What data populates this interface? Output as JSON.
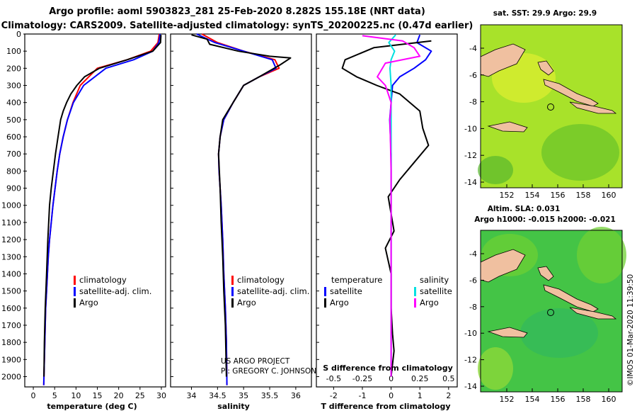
{
  "titles": {
    "line1": "Argo profile: aoml 5903823_281 25-Feb-2020 8.282S 155.18E (NRT data)",
    "line2": "Climatology: CARS2009. Satellite-adjusted climatology: synTS_20200225.nc (0.47d earlier)"
  },
  "colors": {
    "climatology": "#ff0000",
    "satellite": "#0000ff",
    "argo": "#000000",
    "sal_satellite": "#00e0e0",
    "sal_argo": "#ff00ff",
    "land": "#f0c0a0"
  },
  "depth_ticks": [
    0,
    100,
    200,
    300,
    400,
    500,
    600,
    700,
    800,
    900,
    1000,
    1100,
    1200,
    1300,
    1400,
    1500,
    1600,
    1700,
    1800,
    1900,
    2000
  ],
  "legend": {
    "climatology": "climatology",
    "satellite_adj": "satellite-adj. clim.",
    "argo": "Argo",
    "temperature": "temperature",
    "salinity": "salinity",
    "satellite": "satellite"
  },
  "credits": {
    "project": "US ARGO PROJECT",
    "pi": "PI: GREGORY C. JOHNSON"
  },
  "maps": {
    "sst_title": "sat. SST: 29.9 Argo: 29.9",
    "sla_title1": "Altim. SLA: 0.031",
    "sla_title2": "Argo h1000: -0.015 h2000: -0.021",
    "lat_ticks": [
      "-4",
      "-6",
      "-8",
      "-10",
      "-12",
      "-14"
    ],
    "lon_ticks": [
      "152",
      "154",
      "156",
      "158",
      "160"
    ],
    "watermark": "©IMOS 01-Mar-2020 11:39:50"
  },
  "chart_data": [
    {
      "type": "line",
      "title": "",
      "xlabel": "temperature (deg C)",
      "ylabel": "depth",
      "xlim": [
        -2,
        31
      ],
      "ylim": [
        2060,
        0
      ],
      "xticks": [
        "0",
        "5",
        "10",
        "15",
        "20",
        "25",
        "30"
      ],
      "series": [
        {
          "name": "climatology",
          "x": [
            29.5,
            29.2,
            27.5,
            22.0,
            15.0,
            11.0,
            9.3,
            8.0,
            7.0,
            6.2,
            5.6,
            5.1,
            4.6,
            4.2,
            3.8,
            3.5,
            3.3,
            3.1,
            2.9,
            2.7,
            2.5,
            2.45
          ],
          "depth": [
            0,
            50,
            100,
            150,
            200,
            300,
            400,
            500,
            600,
            700,
            800,
            900,
            1000,
            1100,
            1200,
            1300,
            1400,
            1500,
            1600,
            1800,
            2000,
            2050
          ]
        },
        {
          "name": "satellite-adj. clim.",
          "x": [
            29.7,
            29.4,
            28.0,
            23.5,
            17.0,
            11.8,
            9.4,
            8.0,
            7.0,
            6.2,
            5.6,
            5.1,
            4.6,
            4.2,
            3.8,
            3.5,
            3.3,
            3.1,
            2.9,
            2.7,
            2.5,
            2.45
          ],
          "depth": [
            0,
            50,
            100,
            150,
            200,
            300,
            400,
            500,
            600,
            700,
            800,
            900,
            1000,
            1100,
            1200,
            1300,
            1400,
            1500,
            1600,
            1800,
            2000,
            2050
          ]
        },
        {
          "name": "Argo",
          "x": [
            29.9,
            29.8,
            28.0,
            22.0,
            15.5,
            12.0,
            10.2,
            8.8,
            7.8,
            7.0,
            6.4,
            5.8,
            5.2,
            4.7,
            4.2,
            3.8,
            3.4,
            3.1,
            2.8,
            2.6,
            2.5
          ],
          "depth": [
            5,
            50,
            100,
            150,
            200,
            250,
            300,
            350,
            400,
            450,
            500,
            600,
            700,
            800,
            900,
            1000,
            1200,
            1400,
            1600,
            1800,
            2000
          ]
        }
      ]
    },
    {
      "type": "line",
      "title": "",
      "xlabel": "salinity",
      "ylabel": "depth",
      "xlim": [
        33.6,
        36.3
      ],
      "ylim": [
        2060,
        0
      ],
      "xticks": [
        "34",
        "34.5",
        "35",
        "35.5",
        "36"
      ],
      "series": [
        {
          "name": "climatology",
          "x": [
            34.2,
            34.5,
            35.0,
            35.6,
            35.68,
            35.3,
            35.0,
            34.8,
            34.62,
            34.55,
            34.52,
            34.53,
            34.55,
            34.57,
            34.6,
            34.62,
            34.65,
            34.67,
            34.68
          ],
          "depth": [
            0,
            50,
            100,
            150,
            200,
            250,
            300,
            400,
            500,
            600,
            700,
            800,
            900,
            1000,
            1200,
            1400,
            1600,
            1800,
            2050
          ]
        },
        {
          "name": "satellite-adj. clim.",
          "x": [
            34.1,
            34.45,
            35.0,
            35.55,
            35.62,
            35.3,
            35.0,
            34.8,
            34.62,
            34.55,
            34.52,
            34.53,
            34.55,
            34.57,
            34.6,
            34.62,
            34.65,
            34.67,
            34.68
          ],
          "depth": [
            0,
            50,
            100,
            150,
            200,
            250,
            300,
            400,
            500,
            600,
            700,
            800,
            900,
            1000,
            1200,
            1400,
            1600,
            1800,
            2050
          ]
        },
        {
          "name": "Argo",
          "x": [
            34.0,
            34.3,
            34.35,
            34.9,
            35.5,
            35.9,
            35.7,
            35.3,
            35.0,
            34.8,
            34.6,
            34.55,
            34.52,
            34.55,
            34.57,
            34.6,
            34.62,
            34.65,
            34.67
          ],
          "depth": [
            5,
            30,
            60,
            100,
            130,
            140,
            180,
            250,
            300,
            400,
            500,
            600,
            700,
            900,
            1100,
            1300,
            1500,
            1700,
            2000
          ]
        }
      ]
    },
    {
      "type": "line",
      "title": "",
      "xlabel": "T difference from climatology",
      "top_xlabel": "S difference from climatology",
      "xlim": [
        -2.6,
        2.3
      ],
      "ylim": [
        2060,
        0
      ],
      "xticks": [
        "-2",
        "-1",
        "0",
        "1",
        "2"
      ],
      "top_xticks": [
        "-0.5",
        "-0.25",
        "0",
        "0.25",
        "0.5"
      ],
      "series": [
        {
          "name": "T satellite",
          "x": [
            1.0,
            0.9,
            1.4,
            1.2,
            0.8,
            0.3,
            0.05,
            0.0,
            -0.05,
            0.0,
            0.0,
            0.0,
            0.0,
            0.0
          ],
          "depth": [
            5,
            50,
            100,
            150,
            200,
            250,
            300,
            400,
            500,
            700,
            900,
            1200,
            1600,
            2000
          ]
        },
        {
          "name": "T Argo",
          "x": [
            1.4,
            -0.6,
            -1.6,
            -1.7,
            -1.2,
            -0.5,
            0.3,
            1.0,
            1.1,
            1.3,
            0.8,
            0.3,
            -0.1,
            0.1,
            -0.2,
            0.0,
            0.0,
            0.05,
            0.1,
            0.0
          ],
          "depth": [
            40,
            80,
            150,
            200,
            250,
            300,
            350,
            450,
            550,
            650,
            750,
            850,
            950,
            1150,
            1250,
            1400,
            1600,
            1750,
            1850,
            2000
          ]
        },
        {
          "name": "S satellite",
          "x": [
            0.04,
            -0.02,
            0.03,
            0.0,
            -0.01,
            0.0,
            0.0,
            0.0,
            0.0
          ],
          "depth": [
            5,
            50,
            100,
            150,
            200,
            300,
            500,
            1000,
            2000
          ]
        },
        {
          "name": "S Argo",
          "x": [
            -0.25,
            0.1,
            0.2,
            0.25,
            -0.05,
            -0.12,
            -0.05,
            0.0,
            -0.01,
            0.0,
            0.0,
            0.0
          ],
          "depth": [
            10,
            40,
            80,
            130,
            170,
            250,
            300,
            400,
            500,
            800,
            1200,
            2000
          ]
        }
      ]
    }
  ]
}
